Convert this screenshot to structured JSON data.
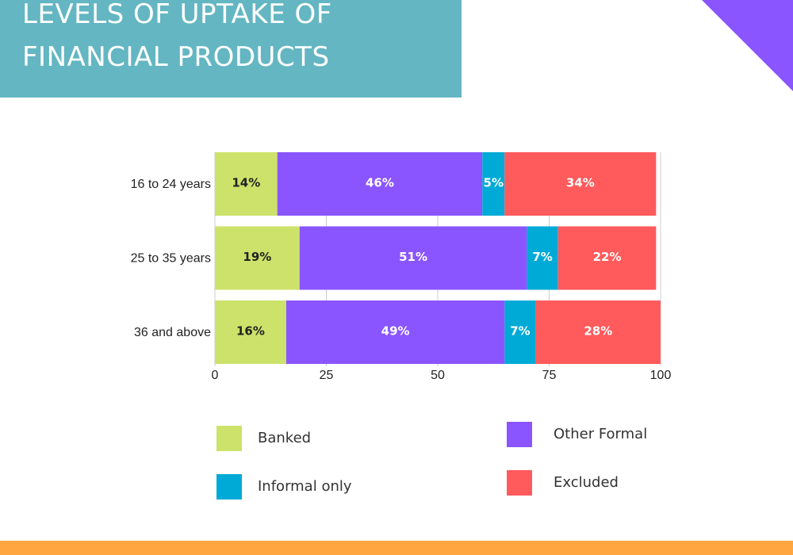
{
  "title": {
    "line1": "LEVELS OF UPTAKE OF",
    "line2": "FINANCIAL PRODUCTS"
  },
  "colors": {
    "title_bg": "#63b6c2",
    "corner_accent": "#8a55ff",
    "bottom_bar": "#ffa640"
  },
  "chart_data": {
    "type": "bar",
    "orientation": "horizontal",
    "stacked": true,
    "categories": [
      "16 to 24 years",
      "25 to 35 years",
      "36 and above"
    ],
    "series": [
      {
        "name": "Banked",
        "color": "#cde26a",
        "values": [
          14,
          19,
          16
        ],
        "labels": [
          "14%",
          "19%",
          "16%"
        ]
      },
      {
        "name": "Other Formal",
        "color": "#8a55ff",
        "values": [
          46,
          51,
          49
        ],
        "labels": [
          "46%",
          "51%",
          "49%"
        ]
      },
      {
        "name": "Informal only",
        "color": "#00aad6",
        "values": [
          5,
          7,
          7
        ],
        "labels": [
          "5%",
          "7%",
          "7%"
        ]
      },
      {
        "name": "Excluded",
        "color": "#ff5a5c",
        "values": [
          34,
          22,
          28
        ],
        "labels": [
          "34%",
          "22%",
          "28%"
        ]
      }
    ],
    "xlim": [
      0,
      100
    ],
    "xticks": [
      0,
      25,
      50,
      75,
      100
    ],
    "xtick_labels": [
      "0",
      "25",
      "50",
      "75",
      "100"
    ],
    "grid": true,
    "legend_position": "bottom"
  }
}
